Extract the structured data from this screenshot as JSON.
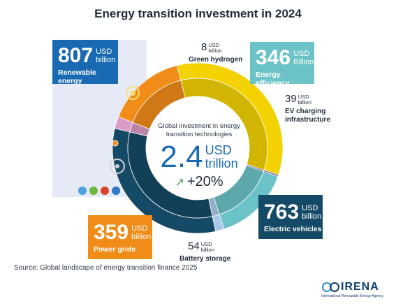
{
  "title": "Energy transition investment in 2024",
  "center": {
    "subtitle": "Global investment in energy transition technologies",
    "total_value": "2.4",
    "total_unit_line1": "USD",
    "total_unit_line2": "trillion",
    "growth": "+20%"
  },
  "chart_data": {
    "type": "pie",
    "title": "Energy transition investment in 2024",
    "unit": "USD billion",
    "total": "2.4 USD trillion",
    "growth": "+20%",
    "categories": [
      "Renewable energy",
      "Green hydrogen",
      "Energy efficiency",
      "EV charging infrastructure",
      "Electric vehicles",
      "Battery storage",
      "Power grids"
    ],
    "values": [
      807,
      8,
      346,
      39,
      763,
      54,
      359
    ],
    "colors": [
      "#f3d200",
      "#7c5b9e",
      "#6cc3c7",
      "#a9c9e8",
      "#154a66",
      "#d99ac4",
      "#f28c18"
    ]
  },
  "labels": {
    "renewable": {
      "value": "807",
      "unit1": "USD",
      "unit2": "billion",
      "name": "Renewable energy",
      "color": "#1a6ab3"
    },
    "hydrogen": {
      "value": "8",
      "unit1": "USD",
      "unit2": "billion",
      "name": "Green hydrogen"
    },
    "efficiency": {
      "value": "346",
      "unit1": "USD",
      "unit2": "Billion",
      "name": "Energy efficiency",
      "color": "#6cc3c7"
    },
    "ev_charging": {
      "value": "39",
      "unit1": "USD",
      "unit2": "billion",
      "name_line1": "EV charging",
      "name_line2": "infrastructure"
    },
    "electric_vehicles": {
      "value": "763",
      "unit1": "USD",
      "unit2": "billion",
      "name": "Electric vehicles",
      "color": "#154a66"
    },
    "battery": {
      "value": "54",
      "unit1": "USD",
      "unit2": "billion",
      "name": "Battery storage"
    },
    "grids": {
      "value": "359",
      "unit1": "USD",
      "unit2": "billion",
      "name": "Power grids",
      "color": "#f28c18"
    }
  },
  "source": "Source: Global landscape of energy transition finance 2025",
  "logo": {
    "wordmark": "IRENA",
    "tagline": "International Renewable Energy Agency",
    "color": "#0f3d6e"
  },
  "icons": [
    "water-icon",
    "leaf-icon",
    "flame-icon",
    "recycle-icon",
    "sun-icon",
    "wind-icon"
  ]
}
